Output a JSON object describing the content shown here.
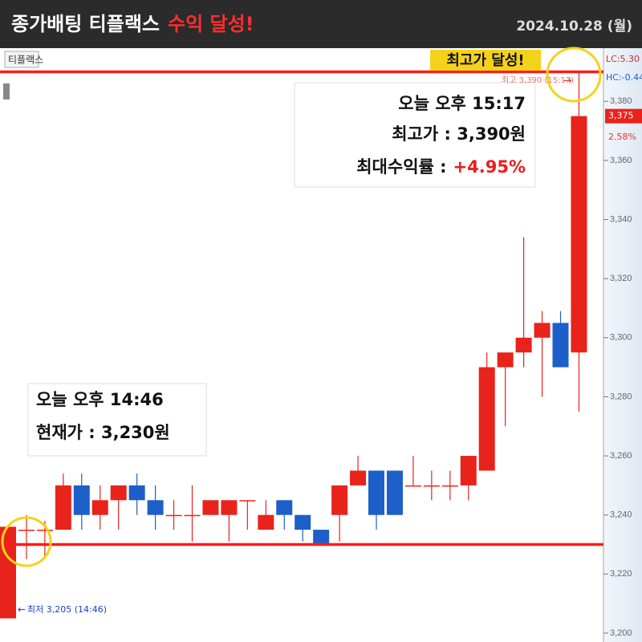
{
  "chart_data": {
    "type": "candlestick",
    "title": "종가배팅 티플랙스",
    "title_highlight": "수익 달성!",
    "date": "2024.10.28 (월)",
    "symbol_label": "티플랙스",
    "up_color": "#e8231b",
    "down_color": "#1c5fc9",
    "grid": false,
    "ylim": [
      3197,
      3398
    ],
    "yticks": [
      {
        "value": 3200,
        "label": "3,200"
      },
      {
        "value": 3220,
        "label": "3,220"
      },
      {
        "value": 3240,
        "label": "3,240"
      },
      {
        "value": 3260,
        "label": "3,260"
      },
      {
        "value": 3280,
        "label": "3,280"
      },
      {
        "value": 3300,
        "label": "3,300"
      },
      {
        "value": 3320,
        "label": "3,320"
      },
      {
        "value": 3340,
        "label": "3,340"
      },
      {
        "value": 3360,
        "label": "3,360"
      },
      {
        "value": 3380,
        "label": "3,380"
      }
    ],
    "series": {
      "open": [
        3205,
        3235,
        3235,
        3235,
        3250,
        3240,
        3245,
        3250,
        3245,
        3240,
        3240,
        3240,
        3240,
        3245,
        3235,
        3245,
        3240,
        3235,
        3240,
        3250,
        3255,
        3255,
        3250,
        3250,
        3250,
        3250,
        3255,
        3290,
        3295,
        3300,
        3305,
        3295
      ],
      "high": [
        3236,
        3240,
        3238,
        3254,
        3254,
        3250,
        3250,
        3254,
        3250,
        3245,
        3250,
        3245,
        3245,
        3245,
        3245,
        3245,
        3240,
        3235,
        3250,
        3260,
        3255,
        3255,
        3260,
        3255,
        3255,
        3260,
        3295,
        3295,
        3334,
        3309,
        3309,
        3390
      ],
      "low": [
        3205,
        3225,
        3226,
        3235,
        3235,
        3235,
        3235,
        3240,
        3235,
        3235,
        3231,
        3240,
        3231,
        3235,
        3235,
        3235,
        3231,
        3230,
        3231,
        3250,
        3235,
        3240,
        3250,
        3245,
        3245,
        3245,
        3255,
        3270,
        3290,
        3280,
        3290,
        3275
      ],
      "close": [
        3236,
        3235,
        3235,
        3250,
        3240,
        3245,
        3250,
        3245,
        3240,
        3240,
        3240,
        3245,
        3245,
        3245,
        3240,
        3240,
        3235,
        3230,
        3250,
        3255,
        3240,
        3240,
        3250,
        3250,
        3250,
        3260,
        3290,
        3295,
        3300,
        3305,
        3290,
        3375
      ]
    },
    "reference_lines": [
      3390,
      3230
    ],
    "reference_color": "#ff1a1a",
    "current_price": {
      "value": 3375,
      "label": "3,375"
    },
    "change_label": "2.58%",
    "axis_notes": [
      "LC:5.30",
      "HC:-0.44"
    ],
    "high_marker_label": "최고 3,390 (15:17)",
    "low_marker_label": "최저 3,205 (14:46)",
    "badge": "최고가 달성!",
    "annotation_high": {
      "lines": [
        "오늘 오후 15:17",
        "최고가 : 3,390원"
      ],
      "return_label": "최대수익률 :",
      "return_value": "+4.95%"
    },
    "annotation_now": {
      "lines": [
        "오늘 오후 14:46",
        "현재가 : 3,230원"
      ]
    }
  }
}
